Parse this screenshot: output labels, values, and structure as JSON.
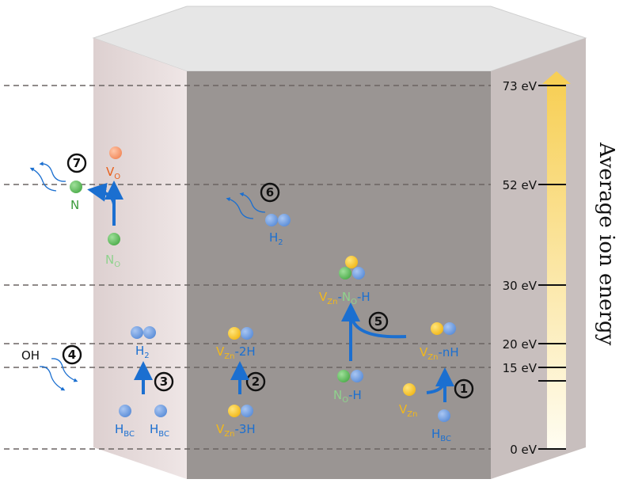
{
  "axis": {
    "label": "Average ion energy",
    "ticks": [
      "73 eV",
      "52 eV",
      "30 eV",
      "20 eV",
      "15 eV",
      "0 eV"
    ]
  },
  "steps": [
    "1",
    "2",
    "3",
    "4",
    "5",
    "6",
    "7"
  ],
  "labels": {
    "vo": {
      "main": "V",
      "sub": "O"
    },
    "n": "N",
    "no": {
      "main": "N",
      "sub": "O"
    },
    "h2_left": {
      "main": "H",
      "sub": "2"
    },
    "h2_mid": {
      "main": "H",
      "sub": "2"
    },
    "oh": "OH",
    "hbc1": {
      "main": "H",
      "sub": "BC"
    },
    "hbc2": {
      "main": "H",
      "sub": "BC"
    },
    "hbc3": {
      "main": "H",
      "sub": "BC"
    },
    "vzn2h": {
      "main": "V",
      "sub": "Zn",
      "rest": "-2H"
    },
    "vzn3h": {
      "main": "V",
      "sub": "Zn",
      "rest": "-3H"
    },
    "vznnoh": {
      "main": "V",
      "sub": "Zn",
      "dash": "-",
      "n": "N",
      "nsub": "O",
      "rest": "-H"
    },
    "vznnh": {
      "main": "V",
      "sub": "Zn",
      "rest": "-nH"
    },
    "noh": {
      "main": "N",
      "sub": "O",
      "rest": "-H"
    },
    "vzn": {
      "main": "V",
      "sub": "Zn"
    }
  },
  "colors": {
    "h": "#6f9fe0",
    "zn_vacancy": "#f7c830",
    "n": "#6cc26a",
    "o_vacancy": "#f7a07a",
    "arrow": "#1b6fd0",
    "front": "#9a9593",
    "side": "#e6dcdc",
    "right_side": "#c8bfbe"
  }
}
